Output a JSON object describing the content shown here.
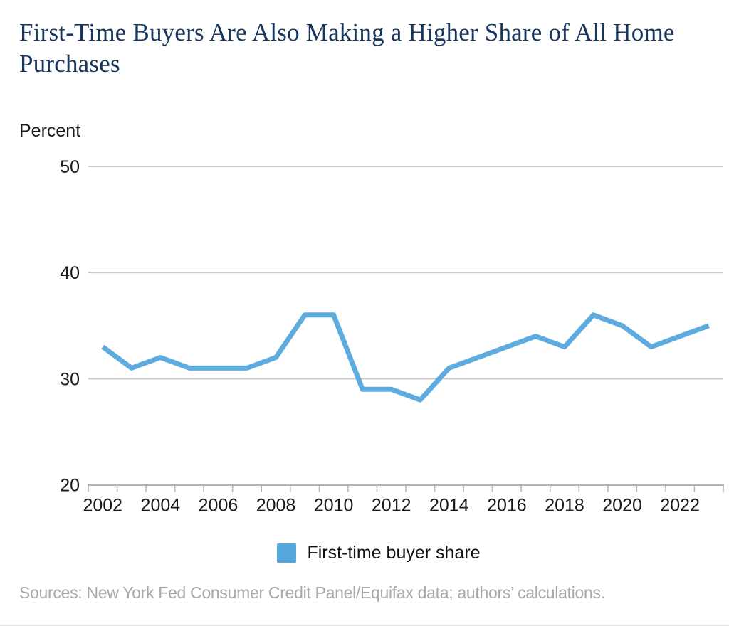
{
  "header": {
    "title": "First-Time Buyers Are Also Making a Higher Share of All Home Purchases"
  },
  "chart": {
    "unit_label": "Percent",
    "legend": [
      {
        "label": "First-time buyer share",
        "color": "#5EABDF"
      }
    ],
    "source": "Sources: New York Fed Consumer Credit Panel/Equifax data; authors’ calculations."
  },
  "chart_data": {
    "type": "line",
    "title": "First-Time Buyers Are Also Making a Higher Share of All Home Purchases",
    "xlabel": "",
    "ylabel": "Percent",
    "x": [
      2002,
      2003,
      2004,
      2005,
      2006,
      2007,
      2008,
      2009,
      2010,
      2011,
      2012,
      2013,
      2014,
      2015,
      2016,
      2017,
      2018,
      2019,
      2020,
      2021,
      2022,
      2023
    ],
    "series": [
      {
        "name": "First-time buyer share",
        "values": [
          33,
          31,
          32,
          31,
          31,
          31,
          32,
          36,
          36,
          29,
          29,
          28,
          31,
          32,
          33,
          34,
          33,
          36,
          35,
          33,
          34,
          35
        ]
      }
    ],
    "ylim": [
      20,
      50
    ],
    "yticks": [
      20,
      30,
      40,
      50
    ],
    "xtick_labels": [
      "2002",
      "2004",
      "2006",
      "2008",
      "2010",
      "2012",
      "2014",
      "2016",
      "2018",
      "2020",
      "2022"
    ],
    "grid": "horizontal",
    "legend_position": "bottom",
    "colors": {
      "line": "#5EABDF",
      "legend_swatch": "#55A8DC",
      "grid": "#C8C8C8",
      "axis": "#B3B3B3",
      "title": "#17375E",
      "tick_text": "#1A1A1A",
      "source_text": "#A8A8A8"
    }
  }
}
